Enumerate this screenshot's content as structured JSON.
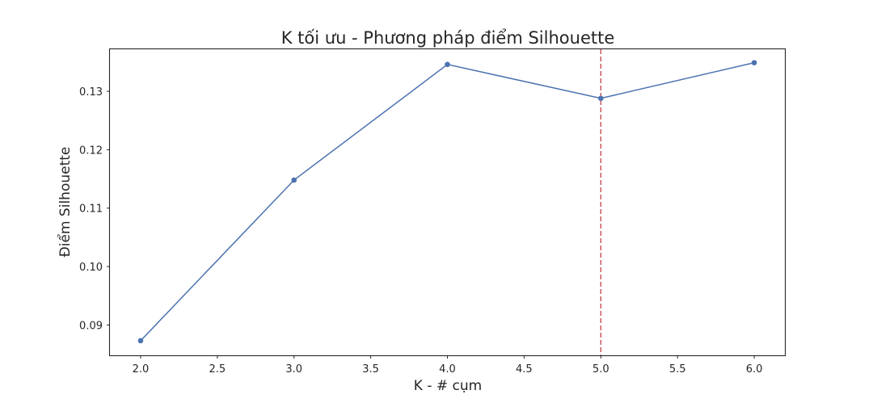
{
  "chart_data": {
    "type": "line",
    "title": "K tối ưu - Phương pháp điểm Silhouette",
    "xlabel": "K - # cụm",
    "ylabel": "Điểm Silhouette",
    "x": [
      2,
      3,
      4,
      5,
      6
    ],
    "series": [
      {
        "values": [
          0.0873,
          0.1148,
          0.1346,
          0.1288,
          0.1349
        ],
        "color": "#4c72b0",
        "marker": "circle"
      }
    ],
    "xlim": [
      1.8,
      6.2
    ],
    "ylim": [
      0.0848,
      0.1372
    ],
    "xticks": [
      2.0,
      2.5,
      3.0,
      3.5,
      4.0,
      4.5,
      5.0,
      5.5,
      6.0
    ],
    "xtick_labels": [
      "2.0",
      "2.5",
      "3.0",
      "3.5",
      "4.0",
      "4.5",
      "5.0",
      "5.5",
      "6.0"
    ],
    "yticks": [
      0.09,
      0.1,
      0.11,
      0.12,
      0.13
    ],
    "ytick_labels": [
      "0.09",
      "0.10",
      "0.11",
      "0.12",
      "0.13"
    ],
    "reference_line": {
      "orientation": "vertical",
      "x": 5,
      "style": "dashed",
      "color": "#c44e52"
    },
    "grid": false,
    "legend": false
  }
}
